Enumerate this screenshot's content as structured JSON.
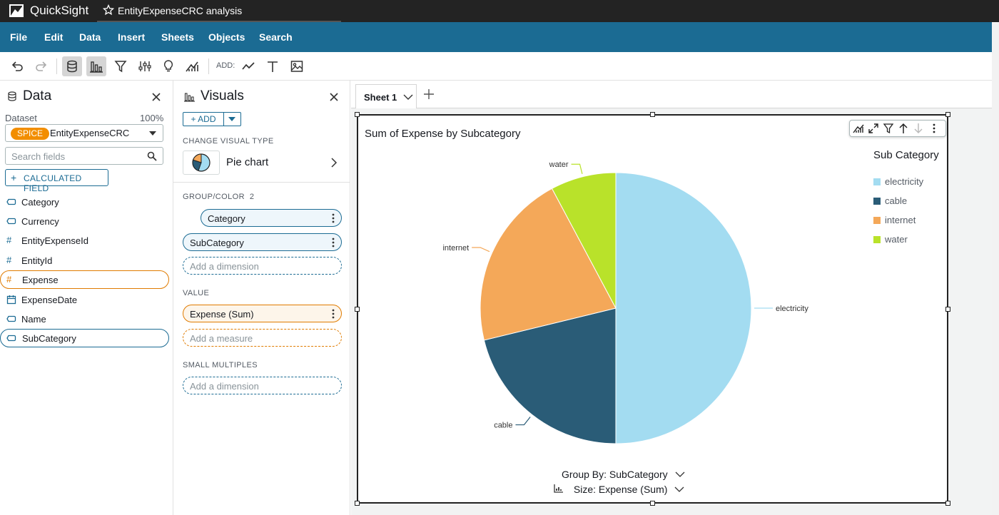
{
  "titlebar": {
    "brand": "QuickSight",
    "document": "EntityExpenseCRC analysis"
  },
  "menu": [
    "File",
    "Edit",
    "Data",
    "Insert",
    "Sheets",
    "Objects",
    "Search"
  ],
  "toolbar": {
    "add_label": "ADD:",
    "icons": [
      "undo-icon",
      "redo-icon",
      "dataset-icon",
      "visuals-icon",
      "filter-icon",
      "parameters-icon",
      "insights-icon",
      "ml-insight-icon",
      "add-visual-icon",
      "add-text-icon",
      "add-image-icon"
    ]
  },
  "data_panel": {
    "title": "Data",
    "dataset_label": "Dataset",
    "dataset_percent": "100%",
    "spice_badge": "SPICE",
    "dataset_name": "EntityExpenseCRC",
    "search_placeholder": "Search fields",
    "calc_field_label": "CALCULATED FIELD",
    "fields": [
      {
        "name": "Category",
        "type": "dimension",
        "selected": ""
      },
      {
        "name": "Currency",
        "type": "dimension",
        "selected": ""
      },
      {
        "name": "EntityExpenseId",
        "type": "measure",
        "selected": ""
      },
      {
        "name": "EntityId",
        "type": "measure",
        "selected": ""
      },
      {
        "name": "Expense",
        "type": "measure",
        "selected": "orange"
      },
      {
        "name": "ExpenseDate",
        "type": "date",
        "selected": ""
      },
      {
        "name": "Name",
        "type": "dimension",
        "selected": ""
      },
      {
        "name": "SubCategory",
        "type": "dimension",
        "selected": "blue"
      }
    ]
  },
  "visuals_panel": {
    "title": "Visuals",
    "add_label": "+ ADD",
    "change_type_label": "CHANGE VISUAL TYPE",
    "visual_type": "Pie chart",
    "group_color_label": "GROUP/COLOR",
    "group_color_count": "2",
    "group_wells": [
      "Category",
      "SubCategory"
    ],
    "add_dimension": "Add a dimension",
    "value_label": "VALUE",
    "value_well": "Expense (Sum)",
    "add_measure": "Add a measure",
    "small_multiples_label": "SMALL MULTIPLES"
  },
  "sheet": {
    "tab_label": "Sheet 1"
  },
  "visual": {
    "title": "Sum of Expense by Subcategory",
    "legend_title": "Sub Category",
    "group_by": "Group By: SubCategory",
    "size": "Size: Expense (Sum)"
  },
  "chart_data": {
    "type": "pie",
    "title": "Sum of Expense by Subcategory",
    "legend_title": "Sub Category",
    "categories": [
      "electricity",
      "cable",
      "internet",
      "water"
    ],
    "values": [
      0.5,
      0.212,
      0.21,
      0.078
    ],
    "colors": [
      "#a3dcf1",
      "#2a5c77",
      "#f4a859",
      "#b9e22a"
    ],
    "legend_placement": "top-right"
  }
}
